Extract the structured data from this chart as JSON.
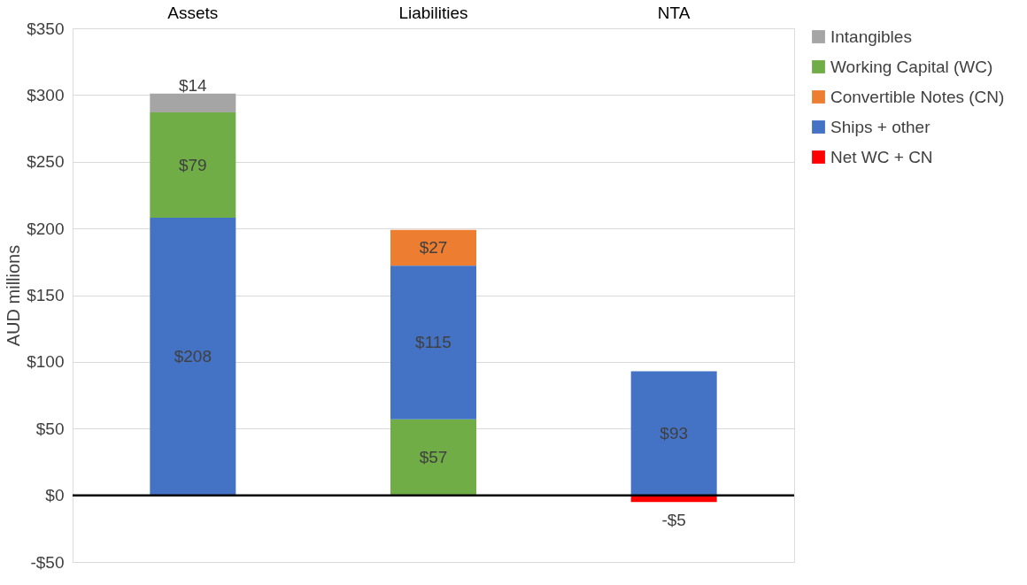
{
  "chart_data": {
    "type": "bar",
    "categories": [
      "Assets",
      "Liabilities",
      "NTA"
    ],
    "ylabel": "AUD millions",
    "ylim": [
      -50,
      350
    ],
    "yticks": [
      {
        "value": -50,
        "label": "-$50"
      },
      {
        "value": 0,
        "label": "$0"
      },
      {
        "value": 50,
        "label": "$50"
      },
      {
        "value": 100,
        "label": "$100"
      },
      {
        "value": 150,
        "label": "$150"
      },
      {
        "value": 200,
        "label": "$200"
      },
      {
        "value": 250,
        "label": "$250"
      },
      {
        "value": 300,
        "label": "$300"
      },
      {
        "value": 350,
        "label": "$350"
      }
    ],
    "series": [
      {
        "name": "Intangibles",
        "color": "#a5a5a5",
        "values": [
          14,
          null,
          null
        ],
        "base": [
          287,
          null,
          null
        ],
        "value_labels": [
          "$14",
          null,
          null
        ]
      },
      {
        "name": "Working Capital (WC)",
        "color": "#70ad47",
        "values": [
          79,
          57,
          null
        ],
        "base": [
          208,
          0,
          null
        ],
        "value_labels": [
          "$79",
          "$57",
          null
        ]
      },
      {
        "name": "Convertible Notes (CN)",
        "color": "#ed7d31",
        "values": [
          null,
          27,
          null
        ],
        "base": [
          null,
          172,
          null
        ],
        "value_labels": [
          null,
          "$27",
          null
        ]
      },
      {
        "name": "Ships + other",
        "color": "#4472c4",
        "values": [
          208,
          115,
          93
        ],
        "base": [
          0,
          57,
          0
        ],
        "value_labels": [
          "$208",
          "$115",
          "$93"
        ]
      },
      {
        "name": "Net WC + CN",
        "color": "#ff0000",
        "values": [
          null,
          null,
          -5
        ],
        "base": [
          null,
          null,
          0
        ],
        "value_labels": [
          null,
          null,
          "-$5"
        ]
      }
    ],
    "ref_lines": [
      {
        "axis": "y",
        "value": 0,
        "color": "#000000"
      }
    ],
    "grid": "y",
    "legend": "right"
  }
}
